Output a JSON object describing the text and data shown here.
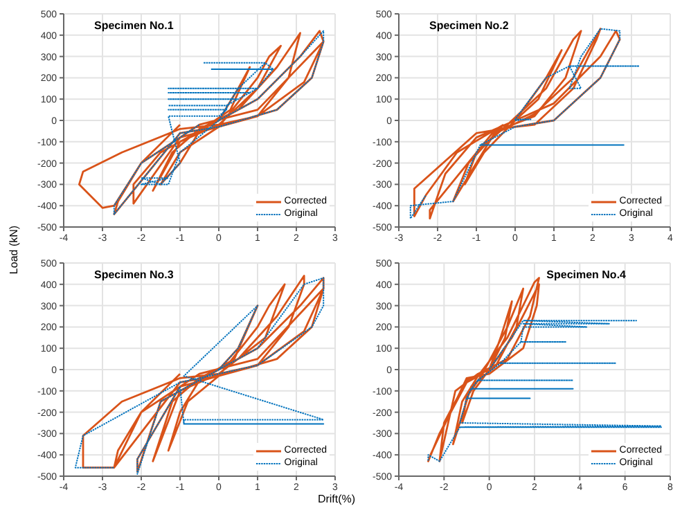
{
  "chart_data": [
    {
      "type": "line",
      "title": "Specimen No.1",
      "ylabel": "Load (kN)",
      "xlim": [
        -4,
        3
      ],
      "xticks": [
        -4,
        -3,
        -2,
        -1,
        0,
        1,
        2,
        3
      ],
      "ylim": [
        -500,
        500
      ],
      "yticks": [
        -500,
        -400,
        -300,
        -200,
        -100,
        0,
        100,
        200,
        300,
        400,
        500
      ],
      "grid": true,
      "legend": "bottom right",
      "marker": "none",
      "series": [
        {
          "name": "Corrected",
          "color": "#d95319",
          "line_style": "solid",
          "x": [
            0,
            0.5,
            0.8,
            0.3,
            -0.5,
            -1,
            -1.5,
            -1,
            0,
            1,
            1.3,
            1.6,
            1,
            0,
            -1,
            -1.7,
            -1.2,
            -0.5,
            0.5,
            1.5,
            2.1,
            1.8,
            1,
            0,
            -1,
            -2.2,
            -2.2,
            -1.5,
            0,
            1,
            2.1,
            2.6,
            2.7,
            2.4,
            1.5,
            0,
            -1,
            -2.7,
            -2.6,
            -2,
            -0.5,
            1,
            2.7,
            2.2,
            1,
            0,
            -1,
            -2.5,
            -3.5,
            -3.6,
            -3,
            -2.7,
            -2,
            -1
          ],
          "values": [
            0,
            150,
            250,
            50,
            -50,
            -200,
            -300,
            -150,
            -30,
            200,
            300,
            350,
            150,
            -20,
            -100,
            -330,
            -150,
            -40,
            50,
            250,
            410,
            200,
            20,
            -30,
            -80,
            -390,
            -300,
            -150,
            0,
            100,
            300,
            420,
            370,
            200,
            50,
            -30,
            -60,
            -440,
            -380,
            -200,
            -20,
            50,
            370,
            180,
            20,
            -20,
            -40,
            -150,
            -240,
            -300,
            -410,
            -400,
            -200,
            -20
          ]
        },
        {
          "name": "Original",
          "color": "#0072bd",
          "line_style": "dotted",
          "x": [
            0,
            0.5,
            1.2,
            -0.4,
            1.2,
            1.4,
            -0.2,
            1.4,
            1,
            -1.3,
            1,
            0.8,
            -1.3,
            0.8,
            0.5,
            -1.3,
            0.5,
            0.2,
            -1.3,
            0.2,
            0.2,
            -1.3,
            0.2,
            0,
            -1.3,
            -1,
            -1.5,
            -2,
            -1.3,
            -2,
            -1.3,
            -1,
            0,
            1,
            2.1,
            2.7,
            2.7,
            2.4,
            1.5,
            0,
            -1,
            -2.7,
            -2.7,
            -2,
            -0.5
          ],
          "values": [
            0,
            150,
            270,
            270,
            270,
            240,
            240,
            240,
            150,
            150,
            150,
            130,
            130,
            130,
            100,
            100,
            100,
            70,
            70,
            70,
            50,
            50,
            50,
            20,
            20,
            -200,
            -300,
            -270,
            -270,
            -300,
            -300,
            -150,
            0,
            100,
            300,
            420,
            370,
            200,
            50,
            -30,
            -60,
            -440,
            -400,
            -200,
            -20
          ]
        }
      ]
    },
    {
      "type": "line",
      "title": "Specimen No.2",
      "xlim": [
        -3,
        4
      ],
      "xticks": [
        -3,
        -2,
        -1,
        0,
        1,
        2,
        3,
        4
      ],
      "ylim": [
        -500,
        500
      ],
      "yticks": [
        -500,
        -400,
        -300,
        -200,
        -100,
        0,
        100,
        200,
        300,
        400,
        500
      ],
      "grid": true,
      "legend": "bottom right",
      "marker": "none",
      "series": [
        {
          "name": "Corrected",
          "color": "#d95319",
          "line_style": "solid",
          "x": [
            0,
            0.8,
            1.2,
            0.6,
            0,
            -0.8,
            -1.3,
            -1,
            -0.2,
            0.8,
            1.5,
            1.7,
            1.3,
            0.5,
            -0.5,
            -1.6,
            -1.2,
            -0.5,
            0.5,
            1.5,
            2.2,
            2.1,
            1.5,
            0.5,
            -0.5,
            -2.2,
            -2.2,
            -1.8,
            -1,
            0,
            1,
            2.2,
            2.6,
            2.7,
            2.2,
            1,
            0,
            -1,
            -2.6,
            -2.6,
            -2.3,
            -1.5,
            -0.3
          ],
          "values": [
            0,
            200,
            330,
            100,
            0,
            -150,
            -300,
            -150,
            -20,
            150,
            380,
            420,
            200,
            20,
            -50,
            -380,
            -200,
            -60,
            30,
            200,
            430,
            380,
            150,
            -20,
            -40,
            -420,
            -460,
            -250,
            -80,
            0,
            80,
            300,
            420,
            380,
            200,
            0,
            -30,
            -60,
            -320,
            -450,
            -350,
            -150,
            -20
          ]
        },
        {
          "name": "Original",
          "color": "#0072bd",
          "line_style": "dotted",
          "x": [
            0,
            0.4,
            0,
            0.8,
            1.4,
            3.2,
            1.4,
            1.7,
            1.4,
            1.7,
            2.2,
            2.7,
            2.7,
            2.2,
            1,
            0,
            -0.9,
            2.8,
            -0.9,
            -1.6,
            -2.7,
            -2.7,
            -2.3
          ],
          "values": [
            0,
            5,
            5,
            200,
            255,
            255,
            255,
            150,
            150,
            300,
            430,
            420,
            380,
            200,
            0,
            -30,
            -115,
            -115,
            -115,
            -380,
            -400,
            -460,
            -350
          ]
        }
      ]
    },
    {
      "type": "line",
      "title": "Specimen No.3",
      "xlim": [
        -4,
        3
      ],
      "xticks": [
        -4,
        -3,
        -2,
        -1,
        0,
        1,
        2,
        3
      ],
      "ylim": [
        -500,
        500
      ],
      "yticks": [
        -500,
        -400,
        -300,
        -200,
        -100,
        0,
        100,
        200,
        300,
        400,
        500
      ],
      "grid": true,
      "legend": "bottom right",
      "marker": "none",
      "series": [
        {
          "name": "Corrected",
          "color": "#d95319",
          "line_style": "solid",
          "x": [
            0,
            0.5,
            1,
            0.4,
            -0.5,
            -1,
            -1.3,
            -0.8,
            0,
            1,
            1.3,
            1.7,
            1.2,
            0,
            -1,
            -1.7,
            -1.2,
            -0.5,
            0.5,
            1.5,
            2.2,
            2.2,
            1.8,
            1,
            0,
            -1,
            -2.1,
            -2.1,
            -1.5,
            0,
            1,
            2.1,
            2.7,
            2.7,
            2.4,
            1.5,
            0,
            -1,
            -2.7,
            -2.6,
            -2,
            -0.5,
            1,
            2.7,
            2.2,
            1,
            0,
            -1,
            -2.5,
            -3.5,
            -3.5,
            -2.7,
            -2,
            -1
          ],
          "values": [
            0,
            100,
            300,
            50,
            -50,
            -200,
            -380,
            -150,
            -30,
            200,
            300,
            400,
            150,
            -20,
            -100,
            -430,
            -150,
            -40,
            50,
            250,
            440,
            400,
            200,
            20,
            -30,
            -80,
            -420,
            -480,
            -150,
            0,
            100,
            300,
            430,
            380,
            200,
            50,
            -30,
            -60,
            -460,
            -380,
            -200,
            -20,
            50,
            380,
            180,
            20,
            -20,
            -40,
            -150,
            -310,
            -460,
            -460,
            -200,
            -20
          ]
        },
        {
          "name": "Original",
          "color": "#0072bd",
          "line_style": "dotted",
          "x": [
            0,
            0.5,
            1,
            -0.9,
            2.7,
            -0.9,
            -0.9,
            2.7,
            -0.9,
            -1,
            -2.1,
            -2.1,
            -1.5,
            0,
            1,
            2.2,
            2.7,
            2.7,
            2.4,
            1,
            -1,
            -3.5,
            -3.7,
            -3.5,
            -2.7
          ],
          "values": [
            0,
            100,
            300,
            -30,
            -235,
            -235,
            -255,
            -255,
            -255,
            -80,
            -420,
            -490,
            -150,
            0,
            100,
            400,
            430,
            300,
            200,
            20,
            -60,
            -310,
            -460,
            -460,
            -460
          ]
        }
      ]
    },
    {
      "type": "line",
      "title": "Specimen No.4",
      "xlabel": "Drift(%)",
      "xlim": [
        -4,
        8
      ],
      "xticks": [
        -4,
        -2,
        0,
        2,
        4,
        6,
        8
      ],
      "ylim": [
        -500,
        500
      ],
      "yticks": [
        -500,
        -400,
        -300,
        -200,
        -100,
        0,
        100,
        200,
        300,
        400,
        500
      ],
      "grid": true,
      "legend": "bottom right",
      "marker": "none",
      "series": [
        {
          "name": "Corrected",
          "color": "#d95319",
          "line_style": "solid",
          "x": [
            0,
            0.5,
            1,
            0.7,
            0,
            -0.7,
            -1.2,
            -1,
            -0.3,
            0.8,
            1.5,
            1.2,
            0.3,
            -0.8,
            -1.6,
            -1.2,
            -0.5,
            0.8,
            2,
            2.2,
            1.8,
            0.8,
            -0.5,
            -1.5,
            -2.2,
            -2,
            -1,
            0,
            1,
            2.2,
            2.1,
            1.5,
            0,
            -1,
            -2.6,
            -2.7,
            -2.2,
            -1,
            -0.3
          ],
          "values": [
            0,
            150,
            320,
            150,
            0,
            -100,
            -250,
            -130,
            -20,
            200,
            380,
            200,
            20,
            -80,
            -350,
            -150,
            -30,
            150,
            410,
            430,
            250,
            50,
            -20,
            -100,
            -430,
            -250,
            -50,
            0,
            150,
            400,
            300,
            100,
            -20,
            -40,
            -400,
            -430,
            -300,
            -60,
            -20
          ]
        },
        {
          "name": "Original",
          "color": "#0072bd",
          "line_style": "dotted",
          "x": [
            0,
            1.5,
            6.5,
            1.5,
            5.3,
            1.5,
            4.3,
            1.5,
            1.4,
            3.4,
            1.4,
            0.5,
            5.6,
            0.5,
            -0.5,
            3.7,
            -0.5,
            -0.8,
            3.7,
            -0.8,
            -1,
            1.8,
            -1,
            -1.3,
            7.6,
            -1.3,
            7.6,
            -1.3,
            -2.2,
            -2.7,
            -2.7
          ],
          "values": [
            0,
            230,
            230,
            230,
            215,
            215,
            200,
            200,
            130,
            130,
            130,
            30,
            30,
            30,
            -50,
            -50,
            -50,
            -90,
            -90,
            -90,
            -135,
            -135,
            -135,
            -250,
            -265,
            -270,
            -270,
            -270,
            -430,
            -400,
            -430
          ]
        }
      ]
    }
  ]
}
